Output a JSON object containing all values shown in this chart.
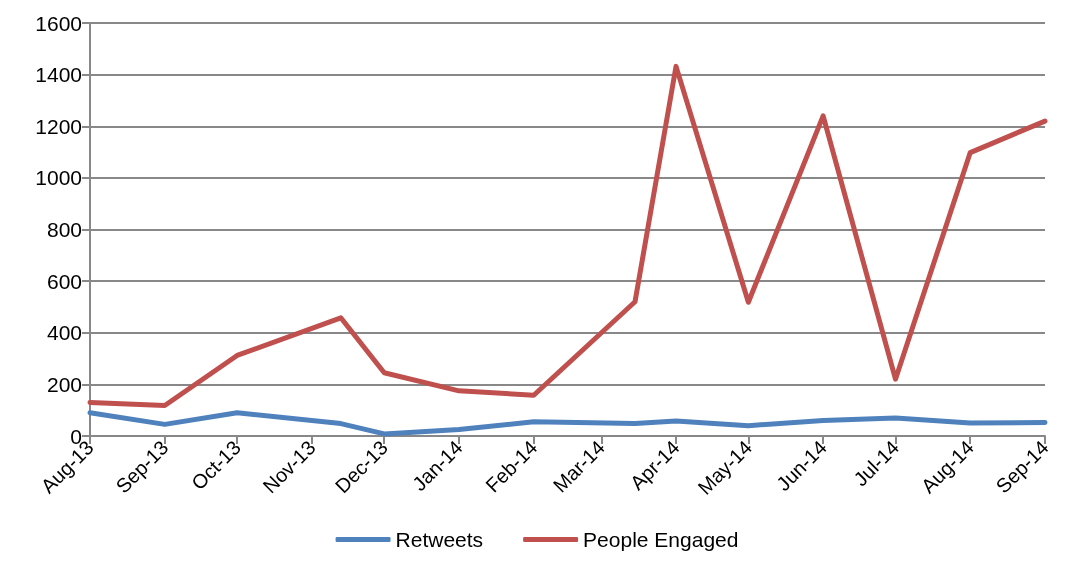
{
  "chart_data": {
    "type": "line",
    "x": [
      "2013-08-01",
      "2013-09-01",
      "2013-10-01",
      "2013-11-13",
      "2013-12-01",
      "2014-01-01",
      "2014-02-01",
      "2014-03-15",
      "2014-04-01",
      "2014-05-01",
      "2014-06-01",
      "2014-07-01",
      "2014-08-01",
      "2014-09-01"
    ],
    "series": [
      {
        "name": "Retweets",
        "color": "#4f81bd",
        "values": [
          90,
          45,
          90,
          48,
          8,
          25,
          55,
          48,
          58,
          40,
          60,
          70,
          50,
          52
        ]
      },
      {
        "name": "People Engaged",
        "color": "#c0504d",
        "values": [
          130,
          118,
          312,
          458,
          245,
          175,
          158,
          520,
          1432,
          518,
          1240,
          220,
          1098,
          1220
        ]
      }
    ],
    "xlim": [
      "2013-08-01",
      "2014-09-01"
    ],
    "xticks": [
      {
        "value": "2013-08-01",
        "label": "Aug-13"
      },
      {
        "value": "2013-09-01",
        "label": "Sep-13"
      },
      {
        "value": "2013-10-01",
        "label": "Oct-13"
      },
      {
        "value": "2013-11-01",
        "label": "Nov-13"
      },
      {
        "value": "2013-12-01",
        "label": "Dec-13"
      },
      {
        "value": "2014-01-01",
        "label": "Jan-14"
      },
      {
        "value": "2014-02-01",
        "label": "Feb-14"
      },
      {
        "value": "2014-03-01",
        "label": "Mar-14"
      },
      {
        "value": "2014-04-01",
        "label": "Apr-14"
      },
      {
        "value": "2014-05-01",
        "label": "May-14"
      },
      {
        "value": "2014-06-01",
        "label": "Jun-14"
      },
      {
        "value": "2014-07-01",
        "label": "Jul-14"
      },
      {
        "value": "2014-08-01",
        "label": "Aug-14"
      },
      {
        "value": "2014-09-01",
        "label": "Sep-14"
      }
    ],
    "ylim": [
      0,
      1600
    ],
    "yticks": [
      0,
      200,
      400,
      600,
      800,
      1000,
      1200,
      1400,
      1600
    ],
    "grid": "y",
    "legend": "bottom",
    "marker": "none",
    "line_style": "solid"
  }
}
